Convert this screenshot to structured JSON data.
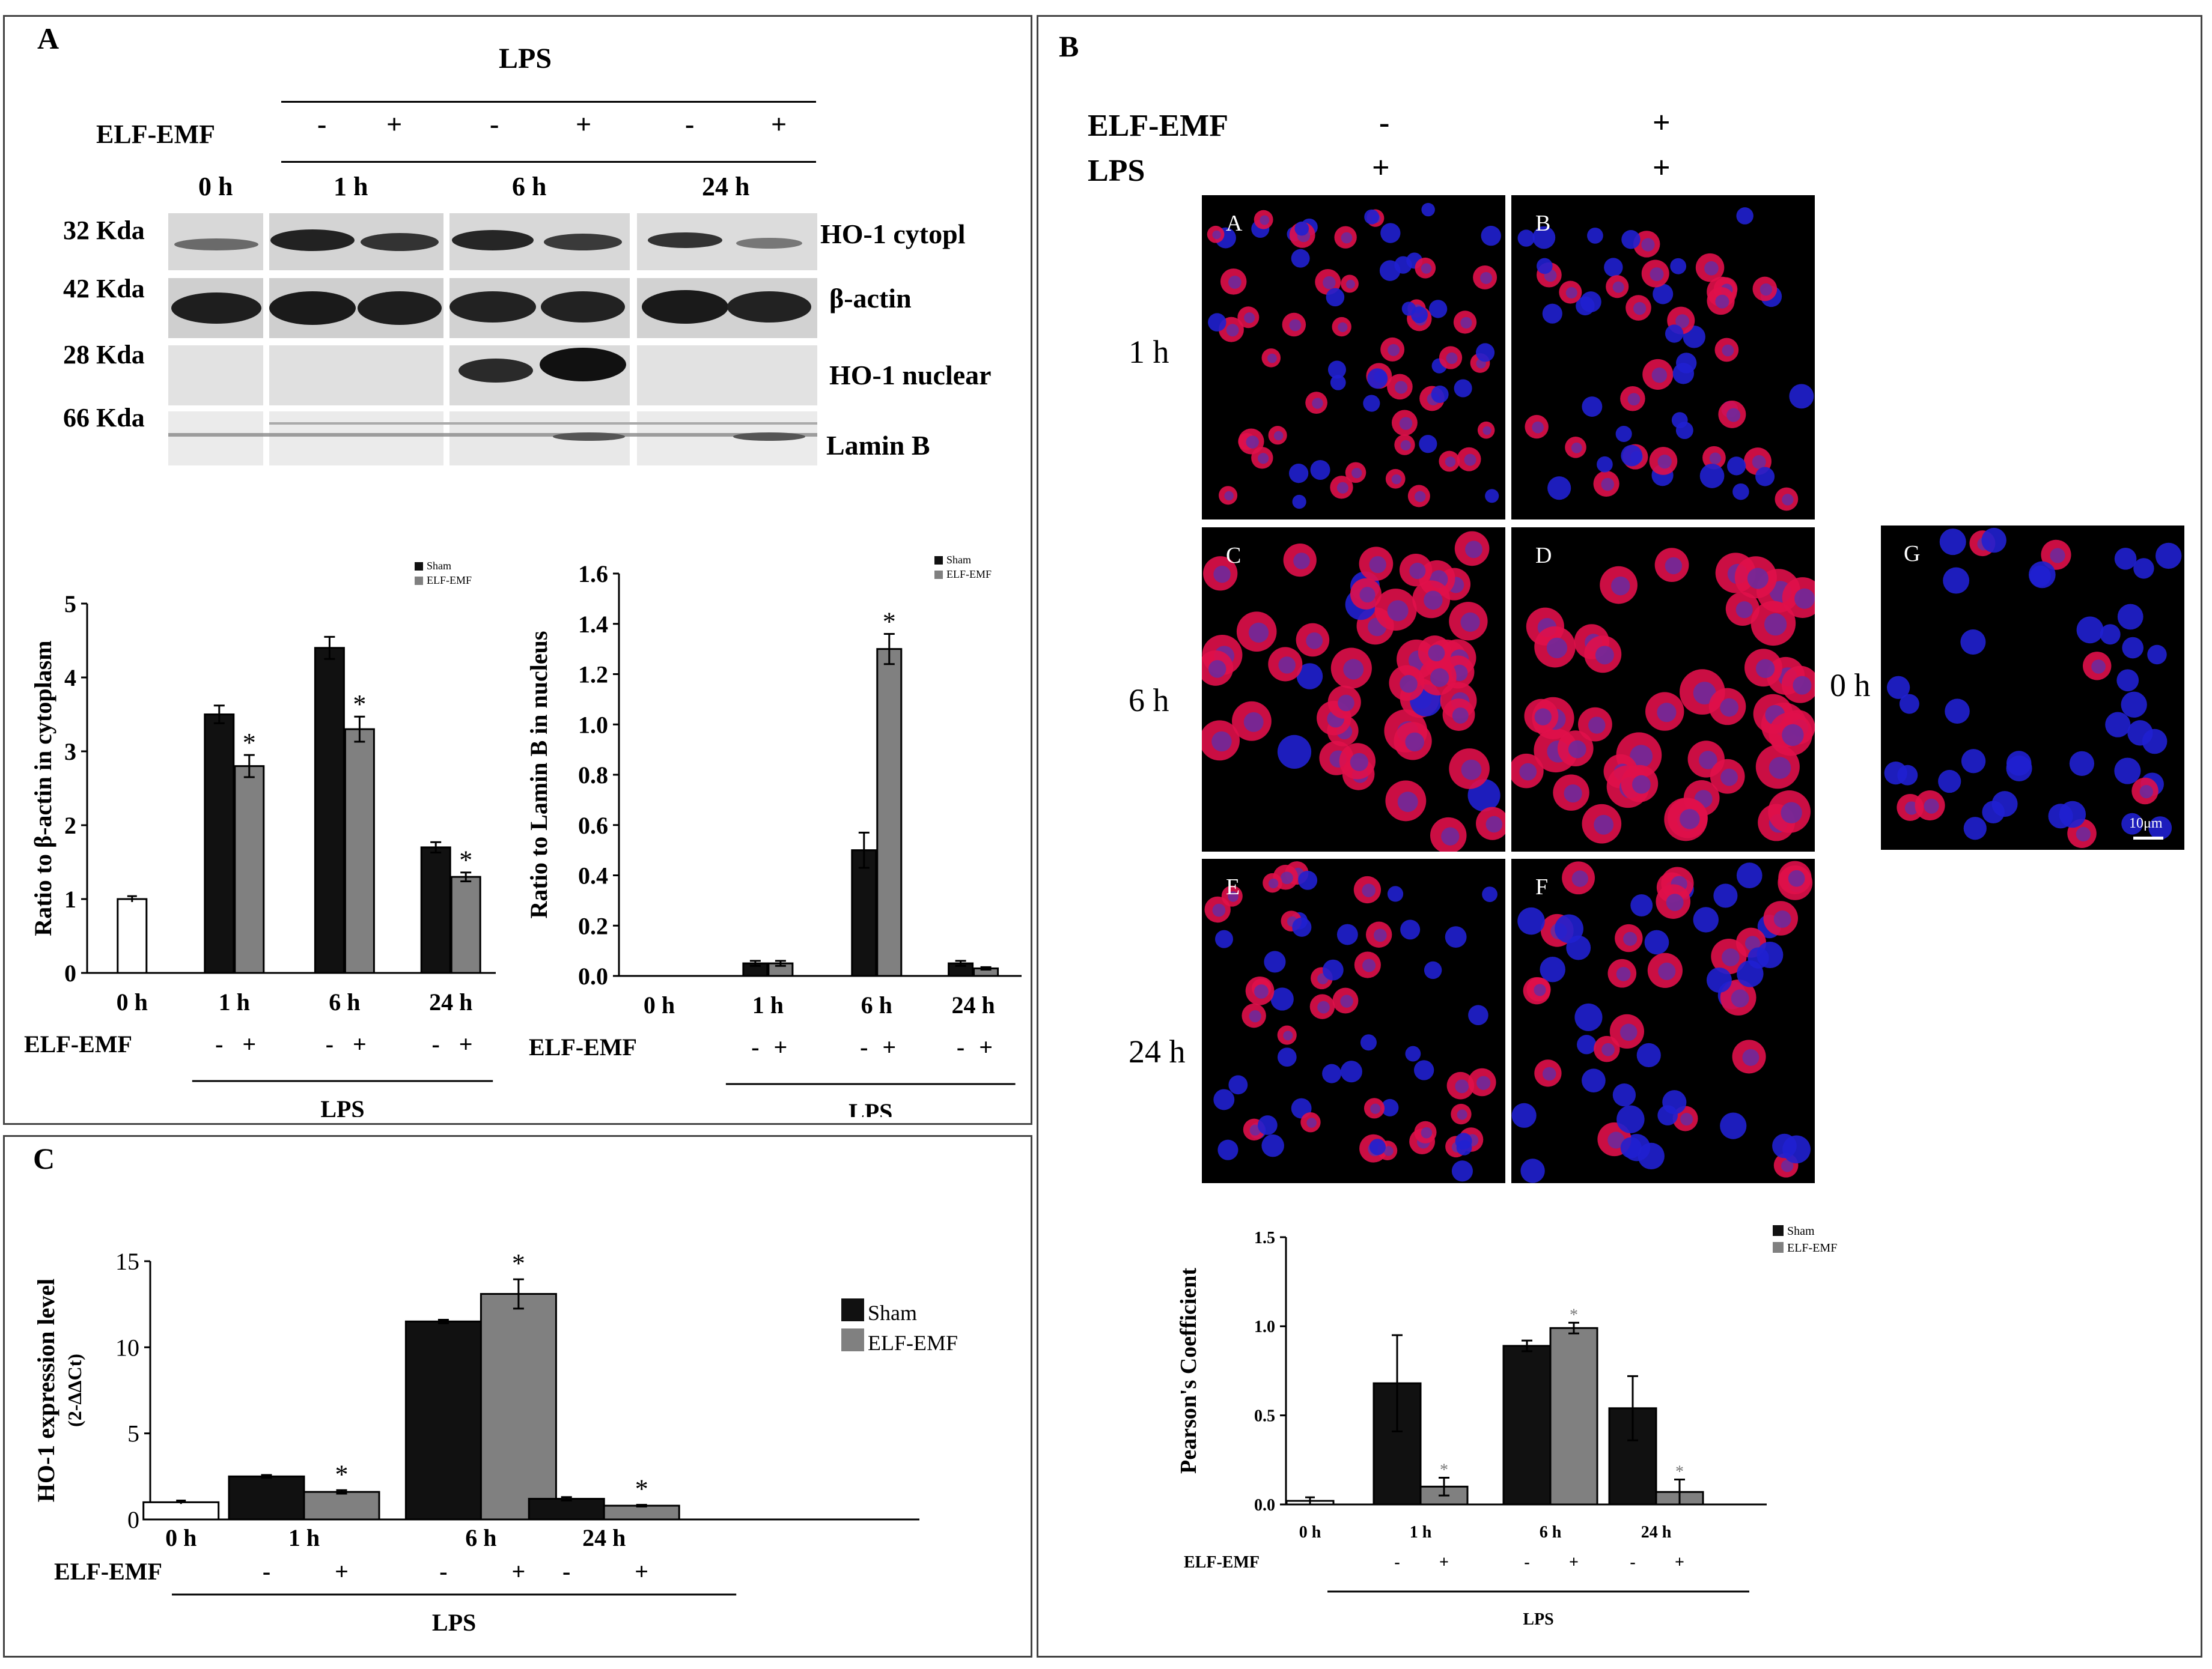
{
  "panels": {
    "A": "A",
    "B": "B",
    "C": "C"
  },
  "blot": {
    "lps": "LPS",
    "elf_label": "ELF-EMF",
    "signs": [
      "-",
      "+",
      "-",
      "+",
      "-",
      "+"
    ],
    "times": [
      "0 h",
      "1 h",
      "6 h",
      "24 h"
    ],
    "rows": [
      {
        "mw": "32 Kda",
        "name": "HO-1 cytopl"
      },
      {
        "mw": "42 Kda",
        "name": "β-actin"
      },
      {
        "mw": "28 Kda",
        "name": "HO-1 nuclear"
      },
      {
        "mw": "66 Kda",
        "name": "Lamin B"
      }
    ]
  },
  "micro": {
    "elf_label": "ELF-EMF",
    "lps_label": "LPS",
    "elf_signs": [
      "-",
      "+"
    ],
    "lps_signs": [
      "+",
      "+"
    ],
    "rows": [
      "1 h",
      "6 h",
      "24 h"
    ],
    "letters": [
      "A",
      "B",
      "C",
      "D",
      "E",
      "F",
      "G"
    ],
    "g_time": "0 h",
    "scalebar": "10μm"
  },
  "colors": {
    "sham": "#111111",
    "elf": "#808080",
    "control": "#ffffff",
    "cell_red": "#e0104a",
    "cell_blue": "#2020d0"
  },
  "chart_data": [
    {
      "id": "A1",
      "type": "bar",
      "ylabel": "Ratio to β-actin in cytoplasm",
      "ylim": [
        0,
        5
      ],
      "yticks": [
        "0",
        "1",
        "2",
        "3",
        "4",
        "5"
      ],
      "groups": [
        "0 h",
        "1 h",
        "6 h",
        "24 h"
      ],
      "control": {
        "value": 1.0,
        "err": 0.04
      },
      "series": [
        {
          "name": "Sham",
          "values": [
            null,
            3.5,
            4.4,
            1.7
          ],
          "errors": [
            null,
            0.12,
            0.15,
            0.07
          ]
        },
        {
          "name": "ELF-EMF",
          "values": [
            null,
            2.8,
            3.3,
            1.3
          ],
          "errors": [
            null,
            0.15,
            0.17,
            0.06
          ]
        }
      ],
      "stars": [
        "*",
        "*",
        "*"
      ],
      "elf_label": "ELF-EMF",
      "signs": [
        "-",
        "+",
        "-",
        "+",
        "-",
        "+"
      ],
      "lps": "LPS",
      "legend": "top-right"
    },
    {
      "id": "A2",
      "type": "bar",
      "ylabel": "Ratio to Lamin B in nucleus",
      "ylim": [
        0,
        1.6
      ],
      "yticks": [
        "0.0",
        "0.2",
        "0.4",
        "0.6",
        "0.8",
        "1.0",
        "1.2",
        "1.4",
        "1.6"
      ],
      "groups": [
        "0 h",
        "1 h",
        "6 h",
        "24 h"
      ],
      "series": [
        {
          "name": "Sham",
          "values": [
            null,
            0.05,
            0.5,
            0.05
          ],
          "errors": [
            null,
            0.01,
            0.07,
            0.01
          ]
        },
        {
          "name": "ELF-EMF",
          "values": [
            null,
            0.05,
            1.3,
            0.03
          ],
          "errors": [
            null,
            0.01,
            0.06,
            0.005
          ]
        }
      ],
      "stars": [
        "*"
      ],
      "elf_label": "ELF-EMF",
      "signs": [
        "-",
        "+",
        "-",
        "+",
        "-",
        "+"
      ],
      "lps": "LPS",
      "legend": "top-right"
    },
    {
      "id": "C",
      "type": "bar",
      "ylabel": "HO-1 expression level",
      "ylabel2": "(2-ΔΔCt)",
      "ylim": [
        0,
        15
      ],
      "yticks": [
        "0",
        "5",
        "10",
        "15"
      ],
      "groups": [
        "0 h",
        "1 h",
        "6 h",
        "24 h"
      ],
      "control": {
        "value": 1.0,
        "err": 0.1
      },
      "series": [
        {
          "name": "Sham",
          "values": [
            null,
            2.5,
            11.5,
            1.2
          ],
          "errors": [
            null,
            0.08,
            0.1,
            0.1
          ]
        },
        {
          "name": "ELF-EMF",
          "values": [
            null,
            1.6,
            13.1,
            0.8
          ],
          "errors": [
            null,
            0.1,
            0.85,
            0.05
          ]
        }
      ],
      "stars": [
        "*",
        "*",
        "*"
      ],
      "elf_label": "ELF-EMF",
      "signs": [
        "-",
        "+",
        "-",
        "+",
        "-",
        "+"
      ],
      "lps": "LPS",
      "legend": "right"
    },
    {
      "id": "B",
      "type": "bar",
      "ylabel": "Pearson's Coefficient",
      "ylim": [
        0,
        1.5
      ],
      "yticks": [
        "0.0",
        "0.5",
        "1.0",
        "1.5"
      ],
      "groups": [
        "0 h",
        "1 h",
        "6 h",
        "24 h"
      ],
      "control": {
        "value": 0.02,
        "err": 0.02
      },
      "series": [
        {
          "name": "Sham",
          "values": [
            null,
            0.68,
            0.89,
            0.54
          ],
          "errors": [
            null,
            0.27,
            0.03,
            0.18
          ]
        },
        {
          "name": "ELF-EMF",
          "values": [
            null,
            0.1,
            0.99,
            0.07
          ],
          "errors": [
            null,
            0.05,
            0.03,
            0.07
          ]
        }
      ],
      "stars": [
        "*",
        "*",
        "*"
      ],
      "elf_label": "ELF-EMF",
      "signs": [
        "-",
        "+",
        "-",
        "+",
        "-",
        "+"
      ],
      "lps": "LPS",
      "legend": "top-right"
    }
  ]
}
